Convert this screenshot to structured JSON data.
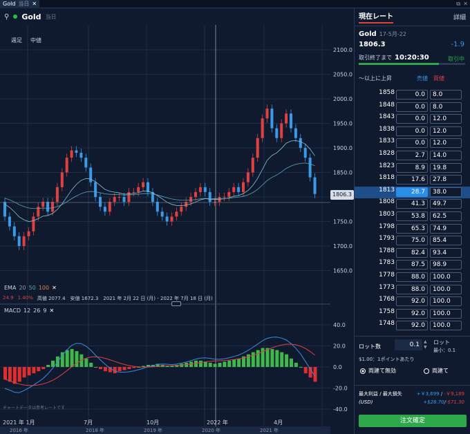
{
  "window": {
    "tab_label": "Gold",
    "tab_sub": "当日",
    "tab_close": "✕",
    "max": "⧉",
    "close": "✕"
  },
  "toolbar": {
    "symbol": "Gold",
    "period": "当日",
    "bar_type": "週足",
    "price_type": "中値"
  },
  "price_axis": [
    "2100.0",
    "2050.0",
    "2000.0",
    "1950.0",
    "1900.0",
    "1850.0",
    "1800.0",
    "1750.0",
    "1700.0",
    "1650.0"
  ],
  "current_price": "1806.3",
  "ema": {
    "label": "EMA",
    "p1": "20",
    "p2": "50",
    "p3": "100",
    "v1": "24.9",
    "v2": "1.40%",
    "hl": "高値 2077.4　安値 1672.3　2021 年 2月 22 日 (月) - 2022 年 7月 18 日 (月)"
  },
  "macd": {
    "label": "MACD",
    "p1": "12",
    "p2": "26",
    "p3": "9",
    "axis": [
      "40.0",
      "20.0",
      "0.0",
      "-20.0",
      "-40.0"
    ]
  },
  "disclaimer": "チャートデータは参考レートです",
  "time_axis": [
    "2021 年 1月",
    "7月",
    "10月",
    "2022 年",
    "4月"
  ],
  "nav_axis": [
    "2016 年",
    "2018 年",
    "2019 年",
    "2020 年",
    "2021 年"
  ],
  "panel": {
    "tab_active": "現在レート",
    "tab_other": "詳細",
    "symbol": "Gold",
    "date": "17-5月-22",
    "price": "1806.3",
    "change": "-1.9",
    "close_label": "取引終了まで",
    "countdown": "10:20:30",
    "status": "取引中",
    "header_cond": "〜以上に上昇",
    "header_bid": "売値",
    "header_ask": "買値",
    "rates": [
      {
        "s": "1858",
        "b": "0.0",
        "a": "8.0"
      },
      {
        "s": "1848",
        "b": "0.0",
        "a": "8.0"
      },
      {
        "s": "1843",
        "b": "0.0",
        "a": "12.0"
      },
      {
        "s": "1838",
        "b": "0.0",
        "a": "12.0"
      },
      {
        "s": "1833",
        "b": "0.0",
        "a": "12.0"
      },
      {
        "s": "1828",
        "b": "2.7",
        "a": "14.0"
      },
      {
        "s": "1823",
        "b": "8.9",
        "a": "19.8"
      },
      {
        "s": "1818",
        "b": "17.6",
        "a": "27.8"
      },
      {
        "s": "1813",
        "b": "28.7",
        "a": "38.0"
      },
      {
        "s": "1808",
        "b": "41.3",
        "a": "49.7"
      },
      {
        "s": "1803",
        "b": "53.8",
        "a": "62.5"
      },
      {
        "s": "1798",
        "b": "65.3",
        "a": "74.9"
      },
      {
        "s": "1793",
        "b": "75.0",
        "a": "85.4"
      },
      {
        "s": "1788",
        "b": "82.4",
        "a": "93.4"
      },
      {
        "s": "1783",
        "b": "87.5",
        "a": "98.9"
      },
      {
        "s": "1778",
        "b": "88.0",
        "a": "100.0"
      },
      {
        "s": "1773",
        "b": "88.0",
        "a": "100.0"
      },
      {
        "s": "1768",
        "b": "92.0",
        "a": "100.0"
      },
      {
        "s": "1758",
        "b": "92.0",
        "a": "100.0"
      },
      {
        "s": "1748",
        "b": "92.0",
        "a": "100.0"
      }
    ],
    "lot_label": "ロット数",
    "lot_value": "0.1",
    "lot_unit": "ロット",
    "lot_min": "最小：0.1",
    "per_point": "$1.00：1ポイントあたり",
    "radio1": "両建て無効",
    "radio2": "両建て",
    "pl_label": "最大利益 / 最大損失",
    "pl_jpy_pos": "+￥3,699",
    "pl_jpy_neg": "-￥9,189",
    "pl_usd_label": "(USD)",
    "pl_usd_pos": "+$28.70",
    "pl_usd_neg": "-$71.30",
    "submit": "注文確定"
  }
}
